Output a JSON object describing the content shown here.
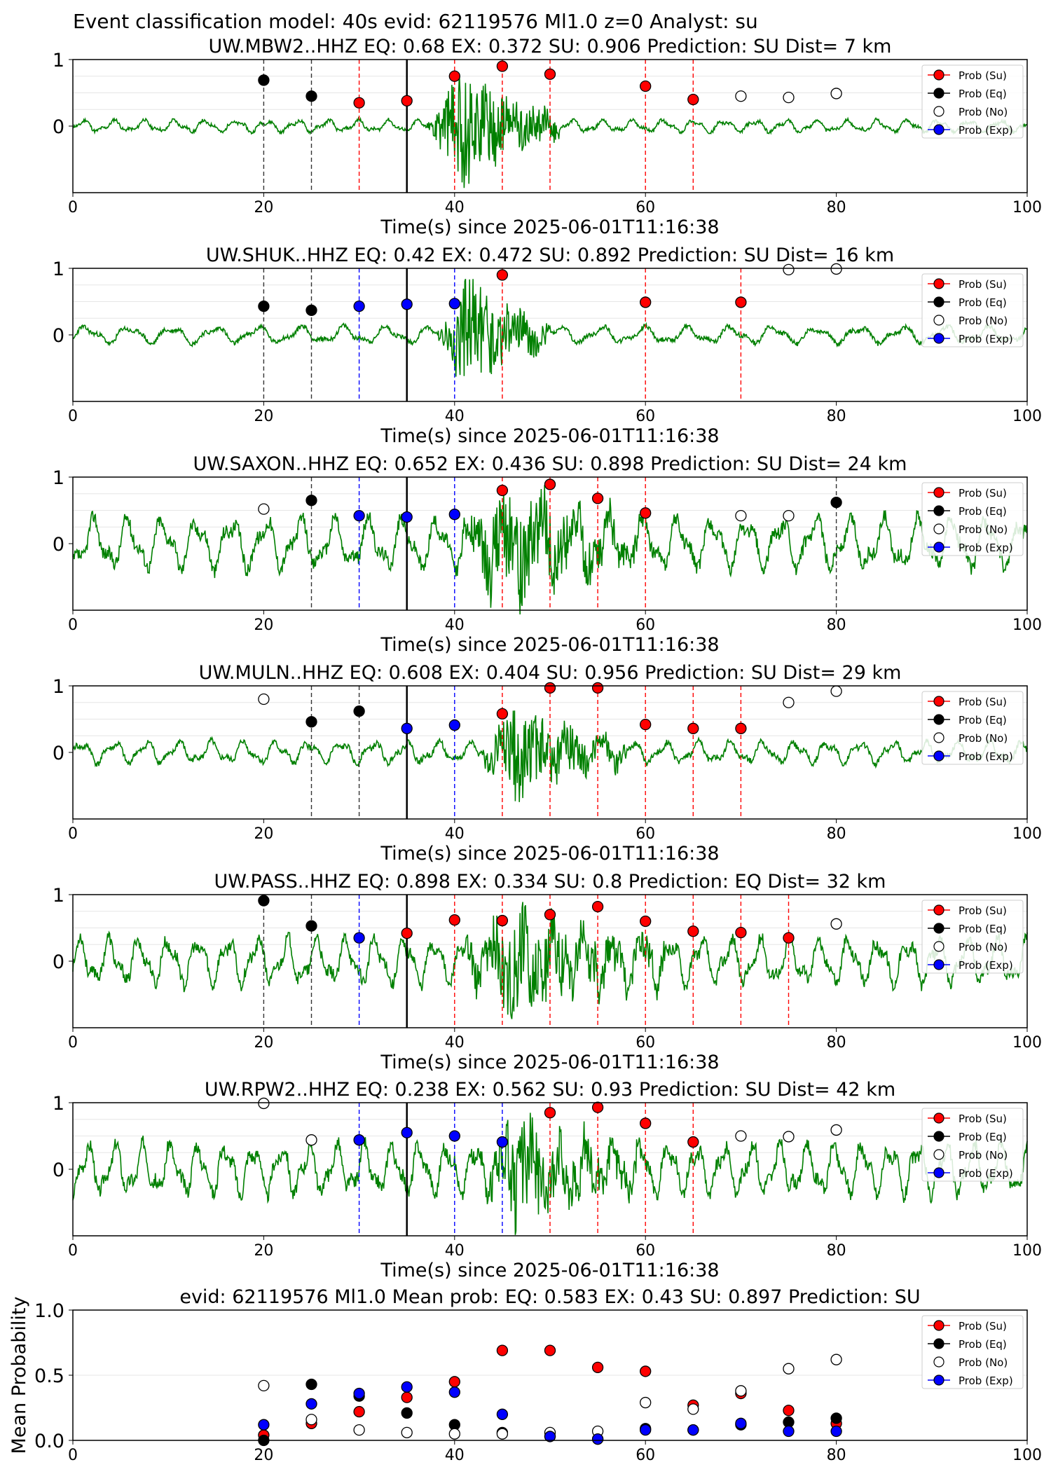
{
  "figure_title": "Event classification model: 40s evid: 62119576 Ml1.0 z=0 Analyst: su",
  "legend_labels": [
    "Prob (Su)",
    "Prob (Eq)",
    "Prob (No)",
    "Prob (Exp)"
  ],
  "colors": {
    "su": "#ff0000",
    "eq": "#000000",
    "no": "#ffffff",
    "exp": "#0000ff",
    "trace": "#008000"
  },
  "chart_data": [
    {
      "type": "scatter",
      "title": "UW.MBW2..HHZ   EQ: 0.68  EX: 0.372  SU: 0.906   Prediction: SU    Dist= 7 km",
      "xlabel": "Time(s) since 2025-06-01T11:16:38",
      "ylabel": "",
      "xlim": [
        0,
        100
      ],
      "ylim": [
        -1,
        1
      ],
      "xticks": [
        "0",
        "20",
        "40",
        "60",
        "80",
        "100"
      ],
      "yticks": [
        "0",
        "1"
      ],
      "trace": {
        "amplitude": 0.1,
        "burst_start": 37,
        "burst_end": 51,
        "burst_amplitude": 1.0,
        "period": 3.2,
        "seed": 11
      },
      "marker_line": 35,
      "points": [
        {
          "x": 20,
          "y": 0.69,
          "cls": "eq"
        },
        {
          "x": 25,
          "y": 0.45,
          "cls": "eq"
        },
        {
          "x": 30,
          "y": 0.35,
          "cls": "su"
        },
        {
          "x": 35,
          "y": 0.38,
          "cls": "su"
        },
        {
          "x": 40,
          "y": 0.75,
          "cls": "su"
        },
        {
          "x": 45,
          "y": 0.9,
          "cls": "su"
        },
        {
          "x": 50,
          "y": 0.78,
          "cls": "su"
        },
        {
          "x": 60,
          "y": 0.6,
          "cls": "su"
        },
        {
          "x": 65,
          "y": 0.4,
          "cls": "su"
        },
        {
          "x": 70,
          "y": 0.45,
          "cls": "no"
        },
        {
          "x": 75,
          "y": 0.43,
          "cls": "no"
        },
        {
          "x": 80,
          "y": 0.49,
          "cls": "no"
        }
      ]
    },
    {
      "type": "scatter",
      "title": "UW.SHUK..HHZ   EQ: 0.42  EX: 0.472  SU: 0.892   Prediction: SU    Dist= 16 km",
      "xlabel": "Time(s) since 2025-06-01T11:16:38",
      "ylabel": "",
      "xlim": [
        0,
        100
      ],
      "ylim": [
        -1,
        1
      ],
      "xticks": [
        "0",
        "20",
        "40",
        "60",
        "80",
        "100"
      ],
      "yticks": [
        "0",
        "1"
      ],
      "trace": {
        "amplitude": 0.14,
        "burst_start": 38,
        "burst_end": 50,
        "burst_amplitude": 1.0,
        "period": 4.5,
        "seed": 23
      },
      "marker_line": 35,
      "points": [
        {
          "x": 20,
          "y": 0.43,
          "cls": "eq"
        },
        {
          "x": 25,
          "y": 0.37,
          "cls": "eq"
        },
        {
          "x": 30,
          "y": 0.43,
          "cls": "exp"
        },
        {
          "x": 35,
          "y": 0.46,
          "cls": "exp"
        },
        {
          "x": 40,
          "y": 0.47,
          "cls": "exp"
        },
        {
          "x": 45,
          "y": 0.9,
          "cls": "su"
        },
        {
          "x": 60,
          "y": 0.49,
          "cls": "su"
        },
        {
          "x": 70,
          "y": 0.49,
          "cls": "su"
        },
        {
          "x": 75,
          "y": 0.98,
          "cls": "no"
        },
        {
          "x": 80,
          "y": 0.99,
          "cls": "no"
        }
      ]
    },
    {
      "type": "scatter",
      "title": "UW.SAXON..HHZ   EQ: 0.652  EX: 0.436  SU: 0.898   Prediction: SU    Dist= 24 km",
      "xlabel": "Time(s) since 2025-06-01T11:16:38",
      "ylabel": "",
      "xlim": [
        0,
        100
      ],
      "ylim": [
        -1,
        1
      ],
      "xticks": [
        "0",
        "20",
        "40",
        "60",
        "80",
        "100"
      ],
      "yticks": [
        "0",
        "1"
      ],
      "trace": {
        "amplitude": 0.42,
        "burst_start": 40,
        "burst_end": 60,
        "burst_amplitude": 0.9,
        "period": 3.6,
        "seed": 37
      },
      "marker_line": 35,
      "points": [
        {
          "x": 20,
          "y": 0.52,
          "cls": "no"
        },
        {
          "x": 25,
          "y": 0.65,
          "cls": "eq"
        },
        {
          "x": 30,
          "y": 0.42,
          "cls": "exp"
        },
        {
          "x": 35,
          "y": 0.4,
          "cls": "exp"
        },
        {
          "x": 40,
          "y": 0.44,
          "cls": "exp"
        },
        {
          "x": 45,
          "y": 0.8,
          "cls": "su"
        },
        {
          "x": 50,
          "y": 0.89,
          "cls": "su"
        },
        {
          "x": 55,
          "y": 0.68,
          "cls": "su"
        },
        {
          "x": 60,
          "y": 0.46,
          "cls": "su"
        },
        {
          "x": 70,
          "y": 0.42,
          "cls": "no"
        },
        {
          "x": 75,
          "y": 0.42,
          "cls": "no"
        },
        {
          "x": 80,
          "y": 0.62,
          "cls": "eq"
        }
      ]
    },
    {
      "type": "scatter",
      "title": "UW.MULN..HHZ   EQ: 0.608  EX: 0.404  SU: 0.956   Prediction: SU    Dist= 29 km",
      "xlabel": "Time(s) since 2025-06-01T11:16:38",
      "ylabel": "",
      "xlim": [
        0,
        100
      ],
      "ylim": [
        -1,
        1
      ],
      "xticks": [
        "0",
        "20",
        "40",
        "60",
        "80",
        "100"
      ],
      "yticks": [
        "0",
        "1"
      ],
      "trace": {
        "amplitude": 0.18,
        "burst_start": 42,
        "burst_end": 58,
        "burst_amplitude": 0.8,
        "period": 3.4,
        "seed": 41
      },
      "marker_line": 35,
      "points": [
        {
          "x": 20,
          "y": 0.8,
          "cls": "no"
        },
        {
          "x": 25,
          "y": 0.46,
          "cls": "eq"
        },
        {
          "x": 30,
          "y": 0.62,
          "cls": "eq"
        },
        {
          "x": 35,
          "y": 0.36,
          "cls": "exp"
        },
        {
          "x": 40,
          "y": 0.41,
          "cls": "exp"
        },
        {
          "x": 45,
          "y": 0.58,
          "cls": "su"
        },
        {
          "x": 50,
          "y": 0.97,
          "cls": "su"
        },
        {
          "x": 55,
          "y": 0.97,
          "cls": "su"
        },
        {
          "x": 60,
          "y": 0.42,
          "cls": "su"
        },
        {
          "x": 65,
          "y": 0.36,
          "cls": "su"
        },
        {
          "x": 70,
          "y": 0.36,
          "cls": "su"
        },
        {
          "x": 75,
          "y": 0.75,
          "cls": "no"
        },
        {
          "x": 80,
          "y": 0.92,
          "cls": "no"
        }
      ]
    },
    {
      "type": "scatter",
      "title": "UW.PASS..HHZ   EQ: 0.898  EX: 0.334  SU: 0.8   Prediction: EQ    Dist= 32 km",
      "xlabel": "Time(s) since 2025-06-01T11:16:38",
      "ylabel": "",
      "xlim": [
        0,
        100
      ],
      "ylim": [
        -1,
        1
      ],
      "xticks": [
        "0",
        "20",
        "40",
        "60",
        "80",
        "100"
      ],
      "yticks": [
        "0",
        "1"
      ],
      "trace": {
        "amplitude": 0.38,
        "burst_start": 40,
        "burst_end": 62,
        "burst_amplitude": 0.9,
        "period": 3.1,
        "seed": 53
      },
      "marker_line": 35,
      "points": [
        {
          "x": 20,
          "y": 0.91,
          "cls": "eq"
        },
        {
          "x": 25,
          "y": 0.53,
          "cls": "eq"
        },
        {
          "x": 30,
          "y": 0.35,
          "cls": "exp"
        },
        {
          "x": 35,
          "y": 0.42,
          "cls": "su"
        },
        {
          "x": 40,
          "y": 0.62,
          "cls": "su"
        },
        {
          "x": 45,
          "y": 0.61,
          "cls": "su"
        },
        {
          "x": 50,
          "y": 0.7,
          "cls": "su"
        },
        {
          "x": 55,
          "y": 0.82,
          "cls": "su"
        },
        {
          "x": 60,
          "y": 0.6,
          "cls": "su"
        },
        {
          "x": 65,
          "y": 0.45,
          "cls": "su"
        },
        {
          "x": 70,
          "y": 0.43,
          "cls": "su"
        },
        {
          "x": 75,
          "y": 0.35,
          "cls": "su"
        },
        {
          "x": 80,
          "y": 0.56,
          "cls": "no"
        }
      ]
    },
    {
      "type": "scatter",
      "title": "UW.RPW2..HHZ   EQ: 0.238  EX: 0.562  SU: 0.93   Prediction: SU    Dist= 42 km",
      "xlabel": "Time(s) since 2025-06-01T11:16:38",
      "ylabel": "",
      "xlim": [
        0,
        100
      ],
      "ylim": [
        -1,
        1
      ],
      "xticks": [
        "0",
        "20",
        "40",
        "60",
        "80",
        "100"
      ],
      "yticks": [
        "0",
        "1"
      ],
      "trace": {
        "amplitude": 0.42,
        "burst_start": 42,
        "burst_end": 60,
        "burst_amplitude": 0.8,
        "period": 2.9,
        "seed": 67
      },
      "marker_line": 35,
      "points": [
        {
          "x": 20,
          "y": 0.99,
          "cls": "no"
        },
        {
          "x": 25,
          "y": 0.44,
          "cls": "no"
        },
        {
          "x": 30,
          "y": 0.44,
          "cls": "exp"
        },
        {
          "x": 35,
          "y": 0.55,
          "cls": "exp"
        },
        {
          "x": 40,
          "y": 0.5,
          "cls": "exp"
        },
        {
          "x": 45,
          "y": 0.41,
          "cls": "exp"
        },
        {
          "x": 50,
          "y": 0.85,
          "cls": "su"
        },
        {
          "x": 55,
          "y": 0.93,
          "cls": "su"
        },
        {
          "x": 60,
          "y": 0.69,
          "cls": "su"
        },
        {
          "x": 65,
          "y": 0.41,
          "cls": "su"
        },
        {
          "x": 70,
          "y": 0.5,
          "cls": "no"
        },
        {
          "x": 75,
          "y": 0.49,
          "cls": "no"
        },
        {
          "x": 80,
          "y": 0.59,
          "cls": "no"
        }
      ]
    },
    {
      "type": "scatter",
      "title": "evid: 62119576  Ml1.0   Mean prob:   EQ: 0.583  EX: 0.43  SU: 0.897   Prediction: SU",
      "xlabel": "",
      "ylabel": "Mean Probability",
      "xlim": [
        0,
        100
      ],
      "ylim": [
        0,
        1
      ],
      "xticks": [
        "0",
        "20",
        "40",
        "60",
        "80",
        "100"
      ],
      "yticks": [
        "0.0",
        "0.5",
        "1.0"
      ],
      "series": [
        {
          "cls": "su",
          "x": [
            20,
            25,
            30,
            35,
            40,
            45,
            50,
            55,
            60,
            65,
            70,
            75,
            80
          ],
          "values": [
            0.04,
            0.13,
            0.22,
            0.33,
            0.45,
            0.69,
            0.69,
            0.56,
            0.53,
            0.27,
            0.36,
            0.23,
            0.13
          ]
        },
        {
          "cls": "eq",
          "x": [
            20,
            25,
            30,
            35,
            40,
            45,
            50,
            55,
            60,
            65,
            70,
            75,
            80
          ],
          "values": [
            0.0,
            0.43,
            0.34,
            0.21,
            0.12,
            0.06,
            0.03,
            0.01,
            0.09,
            0.08,
            0.12,
            0.14,
            0.17
          ]
        },
        {
          "cls": "no",
          "x": [
            20,
            25,
            30,
            35,
            40,
            45,
            50,
            55,
            60,
            65,
            70,
            75,
            80
          ],
          "values": [
            0.42,
            0.16,
            0.08,
            0.06,
            0.05,
            0.05,
            0.06,
            0.07,
            0.29,
            0.24,
            0.38,
            0.55,
            0.62
          ]
        },
        {
          "cls": "exp",
          "x": [
            20,
            25,
            30,
            35,
            40,
            45,
            50,
            55,
            60,
            65,
            70,
            75,
            80
          ],
          "values": [
            0.12,
            0.28,
            0.36,
            0.41,
            0.37,
            0.2,
            0.03,
            0.01,
            0.08,
            0.08,
            0.13,
            0.07,
            0.07
          ]
        }
      ]
    }
  ]
}
